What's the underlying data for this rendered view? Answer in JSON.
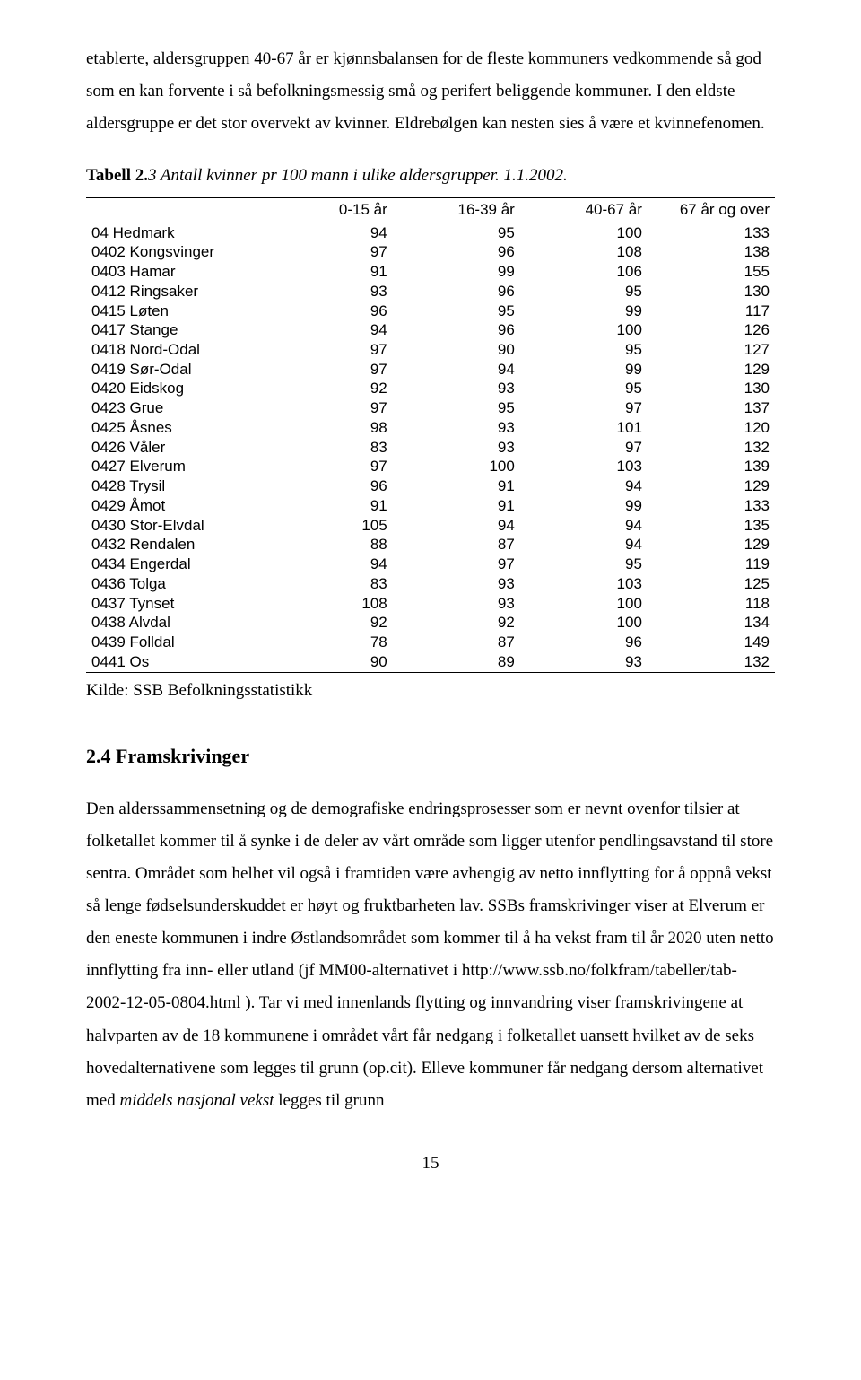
{
  "intro_paragraph": "etablerte, aldersgruppen 40-67 år er kjønnsbalansen for de fleste kommuners vedkommende så god som en kan forvente i så befolkningsmessig små og perifert beliggende kommuner. I den eldste aldersgruppe er det stor overvekt av kvinner. Eldrebølgen kan nesten sies å være et kvinnefenomen.",
  "table": {
    "caption_label": "Tabell 2.",
    "caption_text": "3 Antall kvinner pr 100 mann i ulike aldersgrupper. 1.1.2002.",
    "columns": [
      "",
      "0-15 år",
      "16-39 år",
      "40-67 år",
      "67 år og over"
    ],
    "rows": [
      [
        "04 Hedmark",
        94,
        95,
        100,
        133
      ],
      [
        "0402 Kongsvinger",
        97,
        96,
        108,
        138
      ],
      [
        "0403 Hamar",
        91,
        99,
        106,
        155
      ],
      [
        "0412 Ringsaker",
        93,
        96,
        95,
        130
      ],
      [
        "0415 Løten",
        96,
        95,
        99,
        117
      ],
      [
        "0417 Stange",
        94,
        96,
        100,
        126
      ],
      [
        "0418 Nord-Odal",
        97,
        90,
        95,
        127
      ],
      [
        "0419 Sør-Odal",
        97,
        94,
        99,
        129
      ],
      [
        "0420 Eidskog",
        92,
        93,
        95,
        130
      ],
      [
        "0423 Grue",
        97,
        95,
        97,
        137
      ],
      [
        "0425 Åsnes",
        98,
        93,
        101,
        120
      ],
      [
        "0426 Våler",
        83,
        93,
        97,
        132
      ],
      [
        "0427 Elverum",
        97,
        100,
        103,
        139
      ],
      [
        "0428 Trysil",
        96,
        91,
        94,
        129
      ],
      [
        "0429 Åmot",
        91,
        91,
        99,
        133
      ],
      [
        "0430 Stor-Elvdal",
        105,
        94,
        94,
        135
      ],
      [
        "0432 Rendalen",
        88,
        87,
        94,
        129
      ],
      [
        "0434 Engerdal",
        94,
        97,
        95,
        119
      ],
      [
        "0436 Tolga",
        83,
        93,
        103,
        125
      ],
      [
        "0437 Tynset",
        108,
        93,
        100,
        118
      ],
      [
        "0438 Alvdal",
        92,
        92,
        100,
        134
      ],
      [
        "0439 Folldal",
        78,
        87,
        96,
        149
      ],
      [
        "0441 Os",
        90,
        89,
        93,
        132
      ]
    ],
    "source": "Kilde: SSB Befolkningsstatistikk"
  },
  "section_heading": "2.4 Framskrivinger",
  "body_paragraph_part1": "Den alderssammensetning og de demografiske endringsprosesser som er nevnt ovenfor tilsier at folketallet kommer til å synke i de deler av vårt område som ligger utenfor pendlingsavstand til store sentra. Området som helhet vil også i framtiden være avhengig av netto innflytting for å oppnå vekst så lenge fødselsunderskuddet er høyt og fruktbarheten lav. SSBs framskrivinger viser at Elverum er den eneste kommunen i indre Østlandsområdet som kommer til å ha vekst fram til år 2020 uten netto innflytting fra inn- eller utland (jf MM00-alternativet i http://www.ssb.no/folkfram/tabeller/tab-2002-12-05-0804.html ). Tar vi med innenlands flytting og innvandring viser framskrivingene at halvparten av de 18 kommunene i området vårt får nedgang i folketallet uansett hvilket av de seks hovedalternativene som legges til grunn (op.cit). Elleve kommuner får nedgang dersom alternativet med ",
  "body_italic": "middels nasjonal vekst",
  "body_paragraph_part2": " legges til grunn",
  "page_number": "15"
}
